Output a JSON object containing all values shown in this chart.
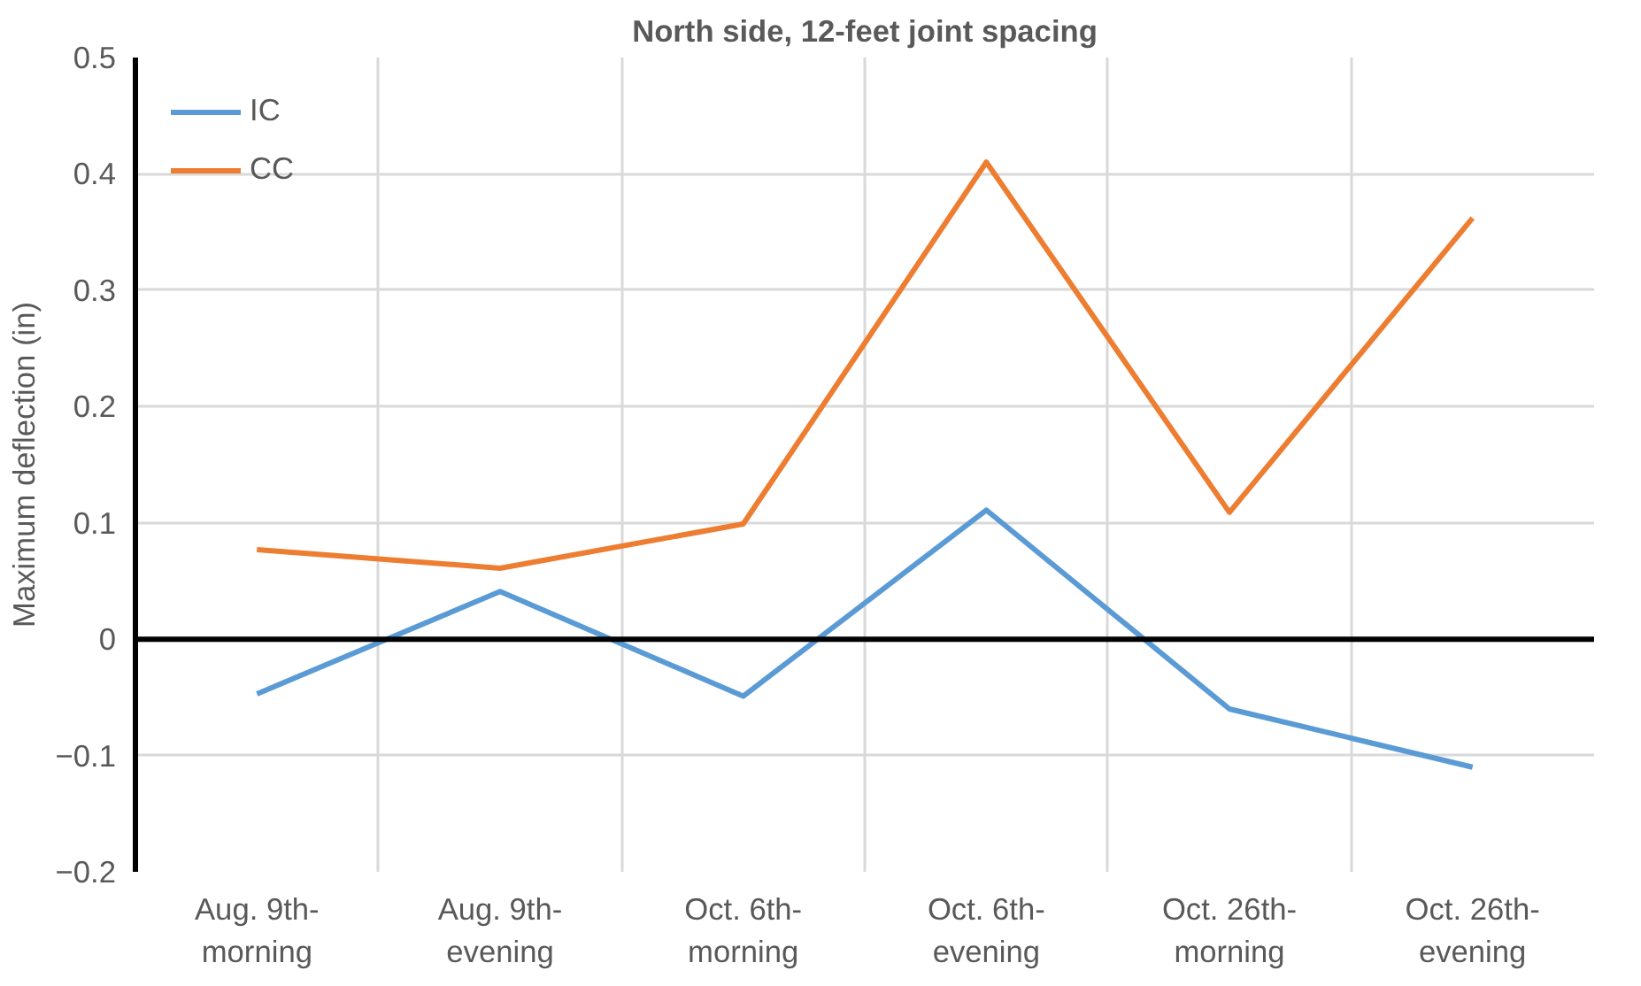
{
  "chart_data": {
    "type": "line",
    "title": "North side, 12-feet joint spacing",
    "ylabel": "Maximum deflection (in)",
    "categories": [
      "Aug. 9th-\nmorning",
      "Aug. 9th-\nevening",
      "Oct. 6th-\nmorning",
      "Oct. 6th-\nevening",
      "Oct. 26th-\nmorning",
      "Oct. 26th-\nevening"
    ],
    "series": [
      {
        "name": "IC",
        "color": "#5b9bd5",
        "values": [
          -0.047,
          0.041,
          -0.049,
          0.111,
          -0.06,
          -0.11
        ]
      },
      {
        "name": "CC",
        "color": "#ed7d31",
        "values": [
          0.077,
          0.061,
          0.099,
          0.41,
          0.109,
          0.362
        ]
      }
    ],
    "ylim": [
      -0.2,
      0.5
    ],
    "yticks": [
      -0.2,
      -0.1,
      0,
      0.1,
      0.2,
      0.3,
      0.4,
      0.5
    ],
    "ref_lines": [
      {
        "axis": "y",
        "value": 0,
        "color": "#000000"
      }
    ],
    "grid": true,
    "legend": "top left",
    "marker": "none",
    "line_style": "solid"
  }
}
